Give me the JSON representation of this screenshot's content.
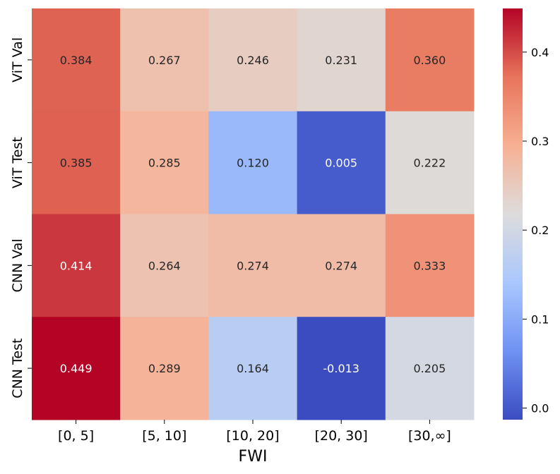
{
  "chart_data": {
    "type": "heatmap",
    "title": "",
    "xlabel": "FWI",
    "ylabel": "",
    "x_categories": [
      "[0, 5]",
      "[5, 10]",
      "[10, 20]",
      "[20, 30]",
      "[30,∞]"
    ],
    "y_categories": [
      "ViT Val",
      "ViT Test",
      "CNN Val",
      "CNN Test"
    ],
    "values": [
      [
        0.384,
        0.267,
        0.246,
        0.231,
        0.36
      ],
      [
        0.385,
        0.285,
        0.12,
        0.005,
        0.222
      ],
      [
        0.414,
        0.264,
        0.274,
        0.274,
        0.333
      ],
      [
        0.449,
        0.289,
        0.164,
        -0.013,
        0.205
      ]
    ],
    "cell_labels": [
      [
        "0.384",
        "0.267",
        "0.246",
        "0.231",
        "0.360"
      ],
      [
        "0.385",
        "0.285",
        "0.120",
        "0.005",
        "0.222"
      ],
      [
        "0.414",
        "0.264",
        "0.274",
        "0.274",
        "0.333"
      ],
      [
        "0.449",
        "0.289",
        "0.164",
        "-0.013",
        "0.205"
      ]
    ],
    "colormap": "coolwarm",
    "vmin": -0.013,
    "vmax": 0.449,
    "colorbar_ticks": [
      0.0,
      0.1,
      0.2,
      0.3,
      0.4
    ],
    "colorbar_tick_labels": [
      "0.0",
      "0.1",
      "0.2",
      "0.3",
      "0.4"
    ],
    "colormap_stops": [
      "#3b4cc0",
      "#6f92f3",
      "#aac7fd",
      "#dddcdc",
      "#f7b093",
      "#e7745b",
      "#b40426"
    ],
    "grid": false,
    "legend": "colorbar-right"
  }
}
